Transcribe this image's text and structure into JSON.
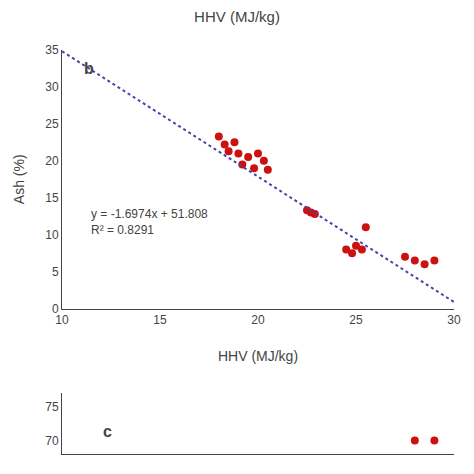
{
  "chart_data": [
    {
      "type": "scatter",
      "title": "HHV (MJ/kg)",
      "x_label": "HHV (MJ/kg)",
      "y_label": "Ash (%)",
      "annotations": [
        "b",
        "y = -1.6974x + 51.808",
        "R² = 0.8291"
      ],
      "series": [
        {
          "type": "scatter",
          "marker": "circle",
          "color": "#CC1111",
          "x": [
            18.0,
            18.3,
            18.5,
            18.8,
            19.0,
            19.2,
            19.5,
            19.8,
            20.0,
            20.3,
            20.5,
            22.5,
            22.7,
            22.9,
            24.5,
            24.8,
            25.0,
            25.3,
            25.5,
            27.5,
            28.0,
            28.5,
            29.0
          ],
          "values": [
            23.3,
            22.2,
            21.3,
            22.5,
            21.0,
            19.5,
            20.5,
            19.0,
            21.0,
            20.0,
            18.8,
            13.3,
            13.0,
            12.8,
            8.0,
            7.5,
            8.5,
            8.0,
            11.0,
            7.0,
            6.5,
            6.0,
            6.5
          ]
        },
        {
          "type": "line",
          "line_style": "dotted",
          "color": "#4444AA",
          "x": [
            10,
            30
          ],
          "values": [
            34.834,
            0.886
          ]
        }
      ],
      "xlim": [
        10,
        30
      ],
      "xticks": [
        10,
        15,
        20,
        25,
        30
      ],
      "ylim": [
        0,
        35
      ],
      "yticks": [
        0,
        5,
        10,
        15,
        20,
        25,
        30,
        35
      ],
      "grid": false
    },
    {
      "type": "scatter",
      "annotations": [
        "c"
      ],
      "series": [
        {
          "type": "scatter",
          "marker": "circle",
          "color": "#CC1111",
          "x": [
            28.0,
            29.0
          ],
          "values": [
            70.0,
            70.0
          ]
        }
      ],
      "xlim": [
        10,
        30
      ],
      "xticks": [],
      "ylim": [
        68,
        77
      ],
      "yticks": [
        75,
        70
      ],
      "tick_labels": "y",
      "grid": false
    }
  ]
}
